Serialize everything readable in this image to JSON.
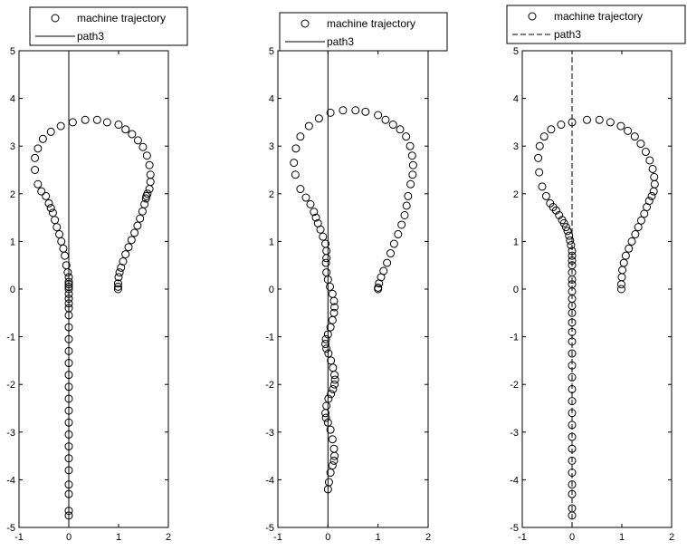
{
  "chart_data": [
    {
      "type": "scatter",
      "panel": "left",
      "title": "",
      "xlabel": "",
      "ylabel": "",
      "xlim": [
        -1,
        2
      ],
      "ylim": [
        -5,
        5
      ],
      "xticks": [
        "-1",
        "0",
        "1",
        "2"
      ],
      "yticks": [
        "-5",
        "-4",
        "-3",
        "-2",
        "-1",
        "0",
        "1",
        "2",
        "3",
        "4",
        "5"
      ],
      "grid": false,
      "legend_position": "top",
      "series": [
        {
          "name": "machine trajectory",
          "marker": "open-circle",
          "color": "#000000",
          "x": [
            0.0,
            0.0,
            0.0,
            0.0,
            0.0,
            0.0,
            0.0,
            0.0,
            0.0,
            0.0,
            0.0,
            0.0,
            0.0,
            0.0,
            0.0,
            0.0,
            0.0,
            0.0,
            0.0,
            0.0,
            0.0,
            0.0,
            0.0,
            0.0,
            0.0,
            0.0,
            0.0,
            -0.02,
            -0.05,
            -0.08,
            -0.11,
            -0.15,
            -0.19,
            -0.24,
            -0.28,
            -0.32,
            -0.36,
            -0.4,
            -0.46,
            -0.55,
            -0.62,
            -0.68,
            -0.68,
            -0.62,
            -0.52,
            -0.36,
            -0.16,
            0.08,
            0.33,
            0.57,
            0.77,
            1.0,
            1.14,
            1.27,
            1.39,
            1.49,
            1.57,
            1.62,
            1.64,
            1.64,
            1.62,
            1.58,
            1.56,
            1.55,
            1.52,
            1.48,
            1.43,
            1.38,
            1.32,
            1.26,
            1.2,
            1.14,
            1.09,
            1.05,
            1.02,
            1.0,
            0.99,
            0.99,
            0.99
          ],
          "y": [
            -4.75,
            -4.65,
            -4.3,
            -4.1,
            -3.8,
            -3.55,
            -3.3,
            -3.05,
            -2.8,
            -2.55,
            -2.3,
            -2.05,
            -1.8,
            -1.55,
            -1.3,
            -1.05,
            -0.8,
            -0.55,
            -0.4,
            -0.3,
            -0.2,
            -0.1,
            0.0,
            0.05,
            0.1,
            0.15,
            0.25,
            0.35,
            0.5,
            0.7,
            0.85,
            1.0,
            1.15,
            1.3,
            1.45,
            1.6,
            1.7,
            1.8,
            1.95,
            2.05,
            2.2,
            2.5,
            2.75,
            2.95,
            3.15,
            3.3,
            3.42,
            3.5,
            3.55,
            3.55,
            3.5,
            3.45,
            3.35,
            3.25,
            3.12,
            2.98,
            2.8,
            2.6,
            2.4,
            2.25,
            2.1,
            2.0,
            1.95,
            1.9,
            1.78,
            1.63,
            1.48,
            1.33,
            1.18,
            1.03,
            0.88,
            0.73,
            0.58,
            0.45,
            0.35,
            0.25,
            0.12,
            0.05,
            0.0
          ]
        },
        {
          "name": "path3",
          "line_style": "solid",
          "color": "#000000",
          "x": [
            0,
            0
          ],
          "y": [
            -5,
            5
          ]
        }
      ]
    },
    {
      "type": "scatter",
      "panel": "middle",
      "title": "",
      "xlabel": "",
      "ylabel": "",
      "xlim": [
        -1,
        2
      ],
      "ylim": [
        -5,
        5
      ],
      "xticks": [
        "-1",
        "0",
        "1",
        "2"
      ],
      "yticks": [
        "-5",
        "-4",
        "-3",
        "-2",
        "-1",
        "0",
        "1",
        "2",
        "3",
        "4",
        "5"
      ],
      "grid": false,
      "legend_position": "top",
      "series": [
        {
          "name": "machine trajectory",
          "marker": "open-circle",
          "color": "#000000",
          "x": [
            0.0,
            0.02,
            0.05,
            0.09,
            0.12,
            0.13,
            0.12,
            0.09,
            0.05,
            0.0,
            -0.04,
            -0.05,
            -0.03,
            0.01,
            0.06,
            0.1,
            0.13,
            0.14,
            0.13,
            0.1,
            0.06,
            0.01,
            -0.03,
            -0.05,
            -0.04,
            0.0,
            0.05,
            0.09,
            0.12,
            0.13,
            0.12,
            0.09,
            0.04,
            0.0,
            -0.03,
            -0.04,
            -0.03,
            -0.03,
            -0.05,
            -0.1,
            -0.15,
            -0.2,
            -0.24,
            -0.28,
            -0.35,
            -0.44,
            -0.55,
            -0.65,
            -0.68,
            -0.64,
            -0.55,
            -0.38,
            -0.18,
            0.05,
            0.3,
            0.55,
            0.75,
            1.0,
            1.15,
            1.3,
            1.44,
            1.56,
            1.64,
            1.68,
            1.7,
            1.69,
            1.65,
            1.6,
            1.57,
            1.53,
            1.47,
            1.4,
            1.32,
            1.25,
            1.18,
            1.11,
            1.06,
            1.02,
            1.0,
            1.0
          ],
          "y": [
            -4.2,
            -4.05,
            -3.85,
            -3.7,
            -3.6,
            -3.5,
            -3.35,
            -3.15,
            -2.95,
            -2.8,
            -2.7,
            -2.6,
            -2.45,
            -2.3,
            -2.2,
            -2.1,
            -2.0,
            -1.9,
            -1.8,
            -1.65,
            -1.5,
            -1.35,
            -1.25,
            -1.15,
            -1.05,
            -0.95,
            -0.8,
            -0.65,
            -0.5,
            -0.38,
            -0.25,
            -0.1,
            0.05,
            0.2,
            0.35,
            0.55,
            0.65,
            0.8,
            0.95,
            1.1,
            1.25,
            1.38,
            1.5,
            1.62,
            1.78,
            1.92,
            2.1,
            2.4,
            2.65,
            2.95,
            3.2,
            3.42,
            3.58,
            3.7,
            3.75,
            3.75,
            3.72,
            3.65,
            3.55,
            3.45,
            3.35,
            3.2,
            3.0,
            2.8,
            2.6,
            2.4,
            2.2,
            1.95,
            1.75,
            1.55,
            1.35,
            1.15,
            0.95,
            0.75,
            0.55,
            0.38,
            0.25,
            0.12,
            0.03,
            0.0
          ]
        },
        {
          "name": "path3",
          "line_style": "solid",
          "color": "#000000",
          "x": [
            0,
            0
          ],
          "y": [
            -5,
            5
          ]
        }
      ]
    },
    {
      "type": "scatter",
      "panel": "right",
      "title": "",
      "xlabel": "",
      "ylabel": "",
      "xlim": [
        -1,
        2
      ],
      "ylim": [
        -5,
        5
      ],
      "xticks": [
        "-1",
        "0",
        "1",
        "2"
      ],
      "yticks": [
        "-5",
        "-4",
        "-3",
        "-2",
        "-1",
        "0",
        "1",
        "2",
        "3",
        "4",
        "5"
      ],
      "grid": false,
      "legend_position": "top",
      "series": [
        {
          "name": "machine trajectory",
          "marker": "open-circle",
          "color": "#000000",
          "x": [
            0.0,
            0.0,
            0.0,
            0.0,
            0.0,
            0.0,
            0.0,
            0.0,
            0.0,
            0.0,
            0.0,
            0.0,
            0.0,
            0.0,
            0.0,
            0.0,
            0.0,
            0.0,
            0.0,
            0.0,
            0.0,
            0.0,
            0.0,
            0.0,
            0.0,
            0.0,
            0.0,
            0.0,
            0.0,
            -0.02,
            -0.04,
            -0.06,
            -0.09,
            -0.12,
            -0.16,
            -0.2,
            -0.26,
            -0.32,
            -0.38,
            -0.44,
            -0.52,
            -0.6,
            -0.66,
            -0.68,
            -0.65,
            -0.56,
            -0.42,
            -0.22,
            0.0,
            0.3,
            0.55,
            0.77,
            0.98,
            1.12,
            1.26,
            1.38,
            1.48,
            1.56,
            1.62,
            1.65,
            1.66,
            1.64,
            1.6,
            1.55,
            1.5,
            1.45,
            1.39,
            1.33,
            1.27,
            1.2,
            1.14,
            1.08,
            1.04,
            1.01,
            1.0,
            0.99,
            0.99
          ],
          "y": [
            -4.75,
            -4.6,
            -4.3,
            -4.1,
            -3.85,
            -3.6,
            -3.35,
            -3.1,
            -2.85,
            -2.6,
            -2.35,
            -2.1,
            -1.85,
            -1.6,
            -1.35,
            -1.1,
            -0.9,
            -0.7,
            -0.5,
            -0.35,
            -0.2,
            -0.05,
            0.1,
            0.2,
            0.35,
            0.5,
            0.6,
            0.7,
            0.8,
            0.92,
            1.02,
            1.12,
            1.22,
            1.3,
            1.38,
            1.45,
            1.55,
            1.65,
            1.72,
            1.8,
            1.95,
            2.15,
            2.45,
            2.75,
            3.0,
            3.2,
            3.35,
            3.45,
            3.5,
            3.55,
            3.55,
            3.5,
            3.42,
            3.32,
            3.2,
            3.05,
            2.88,
            2.7,
            2.52,
            2.35,
            2.2,
            2.05,
            1.95,
            1.85,
            1.72,
            1.58,
            1.44,
            1.3,
            1.15,
            1.0,
            0.85,
            0.7,
            0.55,
            0.4,
            0.25,
            0.1,
            0.0
          ]
        },
        {
          "name": "path3",
          "line_style": "dashed",
          "color": "#000000",
          "x": [
            0,
            0
          ],
          "y": [
            -5,
            5
          ]
        }
      ]
    }
  ]
}
